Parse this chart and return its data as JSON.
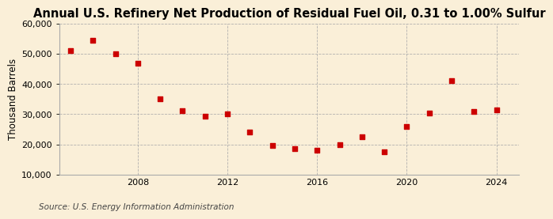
{
  "title": "Annual U.S. Refinery Net Production of Residual Fuel Oil, 0.31 to 1.00% Sulfur",
  "ylabel": "Thousand Barrels",
  "source": "Source: U.S. Energy Information Administration",
  "background_color": "#faefd8",
  "marker_color": "#cc0000",
  "years": [
    2005,
    2006,
    2007,
    2008,
    2009,
    2010,
    2011,
    2012,
    2013,
    2014,
    2015,
    2016,
    2017,
    2018,
    2019,
    2020,
    2021,
    2022,
    2023,
    2024
  ],
  "values": [
    51200,
    54500,
    50000,
    47000,
    35200,
    31200,
    29200,
    30000,
    24000,
    19500,
    18500,
    18000,
    19800,
    22500,
    17500,
    26000,
    30500,
    41000,
    31000,
    31500
  ],
  "ylim": [
    10000,
    60000
  ],
  "yticks": [
    10000,
    20000,
    30000,
    40000,
    50000,
    60000
  ],
  "xlim": [
    2004.5,
    2025.0
  ],
  "xticks": [
    2008,
    2012,
    2016,
    2020,
    2024
  ],
  "grid_color": "#aaaaaa",
  "title_fontsize": 10.5,
  "label_fontsize": 8.5,
  "tick_fontsize": 8,
  "source_fontsize": 7.5
}
